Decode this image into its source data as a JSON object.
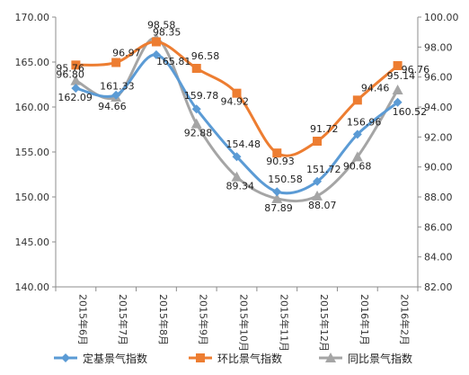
{
  "chart_data": {
    "type": "line",
    "categories": [
      "2015年6月",
      "2015年7月",
      "2015年8月",
      "2015年9月",
      "2015年10月",
      "2015年11月",
      "2015年12月",
      "2016年1月",
      "2016年2月"
    ],
    "y_left": {
      "min": 140,
      "max": 170,
      "step": 5,
      "ticks": [
        "140.00",
        "145.00",
        "150.00",
        "155.00",
        "160.00",
        "165.00",
        "170.00"
      ]
    },
    "y_right": {
      "min": 82,
      "max": 100,
      "step": 2,
      "ticks": [
        "82.00",
        "84.00",
        "86.00",
        "88.00",
        "90.00",
        "92.00",
        "94.00",
        "96.00",
        "98.00",
        "100.00"
      ]
    },
    "grid": false,
    "legend_position": "bottom",
    "series": [
      {
        "name": "定基景气指数",
        "axis": "left",
        "color": "#5b9bd5",
        "marker": "diamond",
        "values": [
          162.09,
          161.33,
          165.81,
          159.78,
          154.48,
          150.58,
          151.72,
          156.96,
          160.52
        ],
        "labels": [
          "162.09",
          "161.33",
          "165.81",
          "159.78",
          "154.48",
          "150.58",
          "151.72",
          "156.96",
          "160.52"
        ]
      },
      {
        "name": "环比景气指数",
        "axis": "right",
        "color": "#ed7d31",
        "marker": "square",
        "values": [
          96.8,
          96.97,
          98.35,
          96.58,
          94.92,
          90.93,
          91.72,
          94.46,
          96.76
        ],
        "labels": [
          "96.80",
          "96.97",
          "98.35",
          "96.58",
          "94.92",
          "90.93",
          "91.72",
          "94.46",
          "96.76"
        ]
      },
      {
        "name": "同比景气指数",
        "axis": "right",
        "color": "#a5a5a5",
        "marker": "triangle",
        "values": [
          95.76,
          94.66,
          98.58,
          92.88,
          89.34,
          87.89,
          88.07,
          90.68,
          95.14
        ],
        "labels": [
          "95.76",
          "94.66",
          "98.58",
          "92.88",
          "89.34",
          "87.89",
          "88.07",
          "90.68",
          "95.14"
        ]
      }
    ]
  }
}
